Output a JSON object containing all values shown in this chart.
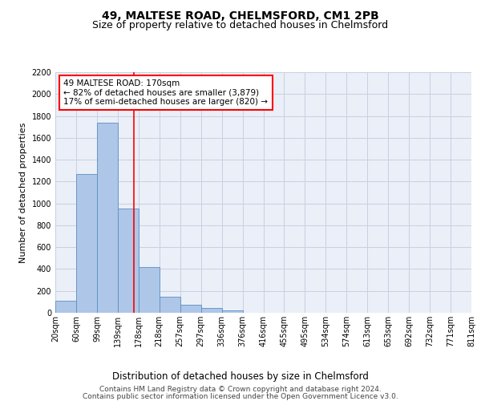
{
  "title1": "49, MALTESE ROAD, CHELMSFORD, CM1 2PB",
  "title2": "Size of property relative to detached houses in Chelmsford",
  "xlabel": "Distribution of detached houses by size in Chelmsford",
  "ylabel": "Number of detached properties",
  "bin_labels": [
    "20sqm",
    "60sqm",
    "99sqm",
    "139sqm",
    "178sqm",
    "218sqm",
    "257sqm",
    "297sqm",
    "336sqm",
    "376sqm",
    "416sqm",
    "455sqm",
    "495sqm",
    "534sqm",
    "574sqm",
    "613sqm",
    "653sqm",
    "692sqm",
    "732sqm",
    "771sqm",
    "811sqm"
  ],
  "bar_values": [
    110,
    1270,
    1740,
    950,
    415,
    150,
    75,
    45,
    25,
    0,
    0,
    0,
    0,
    0,
    0,
    0,
    0,
    0,
    0,
    0
  ],
  "bar_color": "#aec6e8",
  "bar_edge_color": "#5a8fc2",
  "grid_color": "#c8d0e0",
  "background_color": "#eaeff8",
  "annotation_title": "49 MALTESE ROAD: 170sqm",
  "annotation_line1": "← 82% of detached houses are smaller (3,879)",
  "annotation_line2": "17% of semi-detached houses are larger (820) →",
  "ylim": [
    0,
    2200
  ],
  "yticks": [
    0,
    200,
    400,
    600,
    800,
    1000,
    1200,
    1400,
    1600,
    1800,
    2000,
    2200
  ],
  "footer1": "Contains HM Land Registry data © Crown copyright and database right 2024.",
  "footer2": "Contains public sector information licensed under the Open Government Licence v3.0.",
  "title1_fontsize": 10,
  "title2_fontsize": 9,
  "xlabel_fontsize": 8.5,
  "ylabel_fontsize": 8,
  "tick_fontsize": 7,
  "footer_fontsize": 6.5,
  "annotation_fontsize": 7.5
}
